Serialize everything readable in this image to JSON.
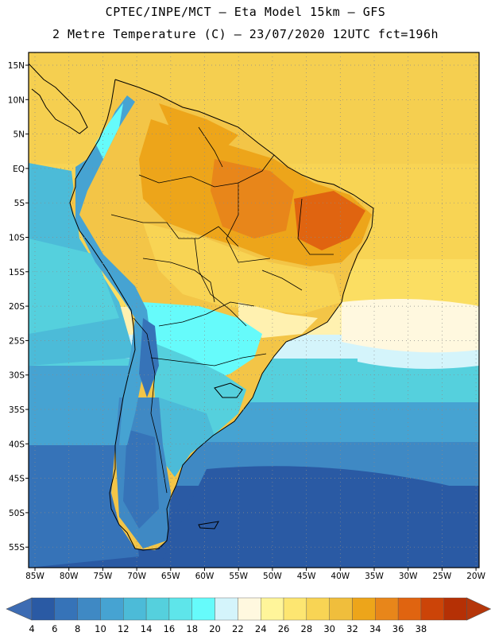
{
  "header": {
    "line1": "CPTEC/INPE/MCT –  Eta Model 15km – GFS",
    "line2": "2 Metre Temperature (C) – 23/07/2020 12UTC fct=196h"
  },
  "map": {
    "lat_labels": [
      "15N",
      "10N",
      "5N",
      "EQ",
      "5S",
      "10S",
      "15S",
      "20S",
      "25S",
      "30S",
      "35S",
      "40S",
      "45S",
      "50S",
      "55S"
    ],
    "lon_labels": [
      "85W",
      "80W",
      "75W",
      "70W",
      "65W",
      "60W",
      "55W",
      "50W",
      "45W",
      "40W",
      "35W",
      "30W",
      "25W",
      "20W"
    ],
    "gridlines": true
  },
  "colorbar": {
    "labels": [
      "4",
      "6",
      "8",
      "10",
      "12",
      "14",
      "16",
      "18",
      "20",
      "22",
      "24",
      "26",
      "28",
      "30",
      "32",
      "34",
      "36",
      "38"
    ],
    "colors": [
      "#2a5aa4",
      "#3673b8",
      "#3f89c4",
      "#46a3d2",
      "#4cbbd8",
      "#55d0dd",
      "#5ee5ea",
      "#66fbfb",
      "#d4f4fb",
      "#fff8df",
      "#fff59a",
      "#fde671",
      "#f8d454",
      "#f0be3c",
      "#eda51a",
      "#e8861a",
      "#e06410",
      "#cc4408",
      "#b53005"
    ],
    "low_color": "#3d6cb3",
    "high_color": "#b5360a"
  }
}
